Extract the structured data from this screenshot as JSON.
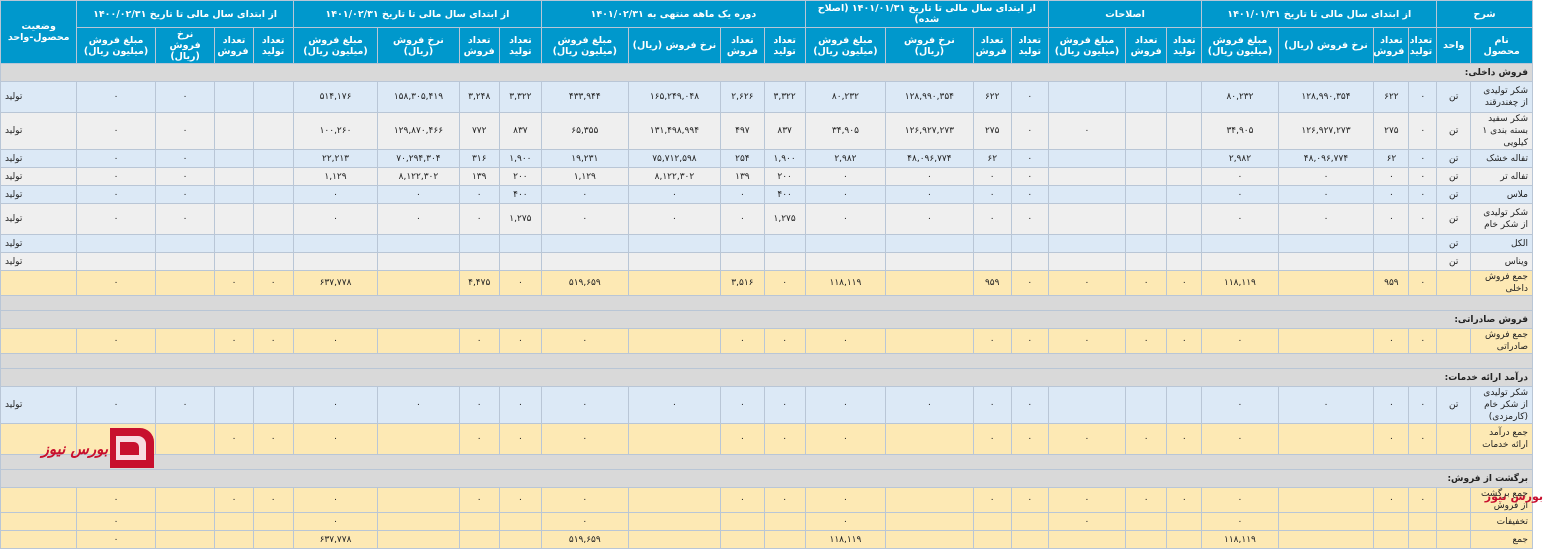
{
  "headers": {
    "sharh": "شرح",
    "g1": "از ابتدای سال مالی تا تاریخ ۱۴۰۱/۰۱/۳۱",
    "g2": "اصلاحات",
    "g3": "از ابتدای سال مالی تا تاریخ ۱۴۰۱/۰۱/۳۱ (اصلاح شده)",
    "g4": "دوره یک ماهه منتهی به ۱۴۰۱/۰۲/۳۱",
    "g5": "از ابتدای سال مالی تا تاریخ ۱۴۰۱/۰۲/۳۱",
    "g6": "از ابتدای سال مالی تا تاریخ ۱۴۰۰/۰۲/۳۱",
    "status": "وضعیت محصول-واحد",
    "product": "نام محصول",
    "unit": "واحد",
    "prod": "تعداد تولید",
    "sold": "تعداد فروش",
    "rate": "نرخ فروش (ریال)",
    "amount": "مبلغ فروش (میلیون ریال)"
  },
  "rows": [
    {
      "type": "grp",
      "label": "فروش داخلی:"
    },
    {
      "type": "blue",
      "h": 31,
      "name": "شکر تولیدی از چغندرقند",
      "unit": "تن",
      "v": [
        "۰",
        "۶۲۲",
        "۱۲۸,۹۹۰,۳۵۴",
        "۸۰,۲۳۲",
        "",
        "",
        "",
        "۰",
        "۶۲۲",
        "۱۲۸,۹۹۰,۳۵۴",
        "۸۰,۲۳۲",
        "۳,۳۲۲",
        "۲,۶۲۶",
        "۱۶۵,۲۴۹,۰۴۸",
        "۴۳۳,۹۴۴",
        "۳,۳۲۲",
        "۳,۲۴۸",
        "۱۵۸,۳۰۵,۴۱۹",
        "۵۱۴,۱۷۶",
        "",
        "",
        "۰",
        "۰"
      ],
      "status": "تولید"
    },
    {
      "type": "gray",
      "h": 31,
      "name": "شکر سفید بسته بندی ۱ کیلویی",
      "unit": "تن",
      "v": [
        "۰",
        "۲۷۵",
        "۱۲۶,۹۲۷,۲۷۳",
        "۳۴,۹۰۵",
        "",
        "",
        "۰",
        "۰",
        "۲۷۵",
        "۱۲۶,۹۲۷,۲۷۳",
        "۳۴,۹۰۵",
        "۸۳۷",
        "۴۹۷",
        "۱۳۱,۴۹۸,۹۹۴",
        "۶۵,۳۵۵",
        "۸۳۷",
        "۷۷۲",
        "۱۲۹,۸۷۰,۴۶۶",
        "۱۰۰,۲۶۰",
        "",
        "",
        "۰",
        "۰"
      ],
      "status": "تولید"
    },
    {
      "type": "blue",
      "name": "تفاله خشک",
      "unit": "تن",
      "v": [
        "۰",
        "۶۲",
        "۴۸,۰۹۶,۷۷۴",
        "۲,۹۸۲",
        "",
        "",
        "",
        "۰",
        "۶۲",
        "۴۸,۰۹۶,۷۷۴",
        "۲,۹۸۲",
        "۱,۹۰۰",
        "۲۵۴",
        "۷۵,۷۱۲,۵۹۸",
        "۱۹,۲۳۱",
        "۱,۹۰۰",
        "۳۱۶",
        "۷۰,۲۹۴,۳۰۴",
        "۲۲,۲۱۳",
        "",
        "",
        "۰",
        "۰"
      ],
      "status": "تولید"
    },
    {
      "type": "gray",
      "name": "تفاله تر",
      "unit": "تن",
      "v": [
        "۰",
        "۰",
        "۰",
        "۰",
        "",
        "",
        "",
        "۰",
        "۰",
        "۰",
        "۰",
        "۲۰۰",
        "۱۳۹",
        "۸,۱۲۲,۳۰۲",
        "۱,۱۲۹",
        "۲۰۰",
        "۱۳۹",
        "۸,۱۲۲,۳۰۲",
        "۱,۱۲۹",
        "",
        "",
        "۰",
        "۰"
      ],
      "status": "تولید"
    },
    {
      "type": "blue",
      "name": "ملاس",
      "unit": "تن",
      "v": [
        "۰",
        "۰",
        "۰",
        "۰",
        "",
        "",
        "",
        "۰",
        "۰",
        "۰",
        "۰",
        "۴۰۰",
        "۰",
        "۰",
        "۰",
        "۴۰۰",
        "۰",
        "۰",
        "۰",
        "",
        "",
        "۰",
        "۰"
      ],
      "status": "تولید"
    },
    {
      "type": "gray",
      "h": 31,
      "name": "شکر تولیدی از شکر خام",
      "unit": "تن",
      "v": [
        "۰",
        "۰",
        "۰",
        "۰",
        "",
        "",
        "",
        "۰",
        "۰",
        "۰",
        "۰",
        "۱,۲۷۵",
        "۰",
        "۰",
        "۰",
        "۱,۲۷۵",
        "۰",
        "۰",
        "۰",
        "",
        "",
        "۰",
        "۰"
      ],
      "status": "تولید"
    },
    {
      "type": "blue",
      "name": "الکل",
      "unit": "تن",
      "v": [
        "",
        "",
        "",
        "",
        "",
        "",
        "",
        "",
        "",
        "",
        "",
        "",
        "",
        "",
        "",
        "",
        "",
        "",
        "",
        "",
        "",
        "",
        ""
      ],
      "status": "تولید"
    },
    {
      "type": "gray",
      "name": "ویناس",
      "unit": "تن",
      "v": [
        "",
        "",
        "",
        "",
        "",
        "",
        "",
        "",
        "",
        "",
        "",
        "",
        "",
        "",
        "",
        "",
        "",
        "",
        "",
        "",
        "",
        "",
        ""
      ],
      "status": "تولید"
    },
    {
      "type": "sum",
      "name": "جمع فروش داخلی",
      "unit": "",
      "v": [
        "۰",
        "۹۵۹",
        "",
        "۱۱۸,۱۱۹",
        "۰",
        "۰",
        "۰",
        "۰",
        "۹۵۹",
        "",
        "۱۱۸,۱۱۹",
        "۰",
        "۳,۵۱۶",
        "",
        "۵۱۹,۶۵۹",
        "۰",
        "۴,۴۷۵",
        "",
        "۶۳۷,۷۷۸",
        "۰",
        "۰",
        "",
        "۰"
      ],
      "status": ""
    },
    {
      "type": "gap"
    },
    {
      "type": "grp",
      "label": "فروش صادراتی:"
    },
    {
      "type": "sum",
      "name": "جمع فروش صادراتی",
      "unit": "",
      "v": [
        "۰",
        "۰",
        "",
        "۰",
        "۰",
        "۰",
        "۰",
        "۰",
        "۰",
        "",
        "۰",
        "۰",
        "۰",
        "",
        "۰",
        "۰",
        "۰",
        "",
        "۰",
        "۰",
        "۰",
        "",
        "۰"
      ],
      "status": ""
    },
    {
      "type": "gap"
    },
    {
      "type": "grp",
      "label": "درآمد ارائه خدمات:"
    },
    {
      "type": "blue",
      "h": 31,
      "name": "شکر تولیدی از شکر خام (کارمزدی)",
      "unit": "تن",
      "v": [
        "۰",
        "۰",
        "۰",
        "۰",
        "",
        "",
        "",
        "۰",
        "۰",
        "۰",
        "۰",
        "۰",
        "۰",
        "۰",
        "۰",
        "۰",
        "۰",
        "۰",
        "۰",
        "",
        "",
        "۰",
        "۰"
      ],
      "status": "تولید"
    },
    {
      "type": "sum",
      "h": 31,
      "name": "جمع درآمد ارائه خدمات",
      "unit": "",
      "v": [
        "۰",
        "۰",
        "",
        "۰",
        "۰",
        "۰",
        "۰",
        "۰",
        "۰",
        "",
        "۰",
        "۰",
        "۰",
        "",
        "۰",
        "۰",
        "۰",
        "",
        "۰",
        "۰",
        "۰",
        "",
        "۰"
      ],
      "status": ""
    },
    {
      "type": "gap"
    },
    {
      "type": "grp",
      "label": "برگشت از فروش:"
    },
    {
      "type": "sum",
      "name": "جمع برگشت از فروش",
      "unit": "",
      "v": [
        "۰",
        "۰",
        "",
        "۰",
        "۰",
        "۰",
        "۰",
        "۰",
        "۰",
        "",
        "۰",
        "۰",
        "۰",
        "",
        "۰",
        "۰",
        "۰",
        "",
        "۰",
        "۰",
        "۰",
        "",
        "۰"
      ],
      "status": ""
    },
    {
      "type": "sum",
      "name": "تخفیفات",
      "unit": "",
      "v": [
        "",
        "",
        "",
        "۰",
        "",
        "",
        "۰",
        "",
        "",
        "",
        "۰",
        "",
        "",
        "",
        "۰",
        "",
        "",
        "",
        "۰",
        "",
        "",
        "",
        "۰"
      ],
      "status": ""
    },
    {
      "type": "sum",
      "name": "جمع",
      "unit": "",
      "v": [
        "",
        "",
        "",
        "۱۱۸,۱۱۹",
        "",
        "",
        "",
        "",
        "",
        "",
        "۱۱۸,۱۱۹",
        "",
        "",
        "",
        "۵۱۹,۶۵۹",
        "",
        "",
        "",
        "۶۳۷,۷۷۸",
        "",
        "",
        "",
        "۰"
      ],
      "status": ""
    }
  ],
  "watermark": "بورس نیوز",
  "logo_text": "بورس نیوز",
  "colors": {
    "header": "#0098cc",
    "sum": "#fde9b4",
    "group": "#d9d9d9",
    "blue": "#dce9f6",
    "brand": "#c8102e"
  }
}
